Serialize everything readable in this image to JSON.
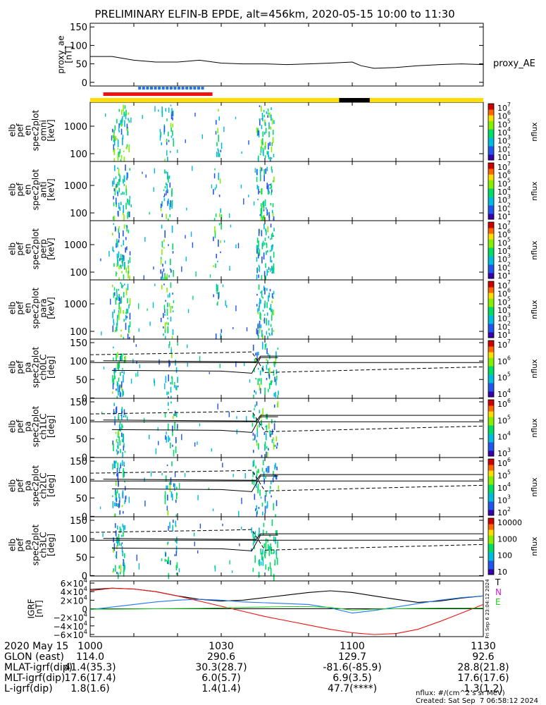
{
  "title": "PRELIMINARY ELFIN-B EPDE, alt=456km, 2020-05-15 10:00 to 11:30",
  "colors": {
    "red": "#ee1111",
    "blue": "#2277ee",
    "green": "#22cc22",
    "black": "#000000",
    "yellow": "#ffdd00"
  },
  "chart_data": [
    {
      "type": "line",
      "ylabel": "proxy_ae\n[nT]",
      "series_label": "proxy_AE",
      "yticks": [
        "150",
        "100",
        "50",
        "0"
      ],
      "ylim": [
        -10,
        160
      ],
      "x": [
        0,
        5,
        10,
        15,
        20,
        25,
        30,
        35,
        40,
        45,
        50,
        55,
        60,
        62,
        65,
        70,
        75,
        80,
        85,
        90
      ],
      "values": [
        70,
        70,
        60,
        55,
        55,
        60,
        52,
        50,
        50,
        48,
        50,
        52,
        55,
        45,
        38,
        40,
        45,
        48,
        50,
        48
      ]
    },
    {
      "type": "bar",
      "name": "state bars",
      "segments": [
        {
          "row": "blue",
          "color": "blue",
          "x0": 11,
          "x1": 26,
          "dashed": true
        },
        {
          "row": "red",
          "color": "red",
          "x0": 3,
          "x1": 28,
          "dashed": false
        },
        {
          "row": "yellow",
          "color": "yellow",
          "x0": 0,
          "x1": 90,
          "dashed": false
        },
        {
          "row": "yellow",
          "color": "black",
          "x0": 57,
          "x1": 64,
          "dashed": false
        }
      ]
    },
    {
      "type": "heatmap",
      "ylabel": "elb\npef\nen\nspec2plot\nomni\n[keV]",
      "yticks": [
        "1000",
        "100"
      ],
      "cb_ticks": [
        "10^7",
        "10^6",
        "10^5",
        "10^4",
        "10^3",
        "10^2",
        "10^1"
      ],
      "cb_label": "nflux"
    },
    {
      "type": "heatmap",
      "ylabel": "elb\npef\nen\nspec2plot\nanti\n[keV]",
      "yticks": [
        "1000",
        "100"
      ],
      "cb_ticks": [
        "10^7",
        "10^6",
        "10^5",
        "10^4",
        "10^3",
        "10^2",
        "10^1"
      ],
      "cb_label": "nflux"
    },
    {
      "type": "heatmap",
      "ylabel": "elb\npef\nen\nspec2plot\nperp\n[keV]",
      "yticks": [
        "1000",
        "100"
      ],
      "cb_ticks": [
        "10^7",
        "10^6",
        "10^5",
        "10^4",
        "10^3",
        "10^2",
        "10^1"
      ],
      "cb_label": "nflux"
    },
    {
      "type": "heatmap",
      "ylabel": "elb\npef\nen\nspec2plot\npara\n[keV]",
      "yticks": [
        "1000",
        "100"
      ],
      "cb_ticks": [
        "10^7",
        "10^6",
        "10^5",
        "10^4",
        "10^3",
        "10^2",
        "10^1"
      ],
      "cb_label": "nflux"
    },
    {
      "type": "heatmap",
      "ylabel": "elb\npef\npa\nspec2plot\nch0LC\n[deg]",
      "yticks": [
        "150",
        "100",
        "50",
        "0"
      ],
      "cb_ticks": [
        "10^7",
        "10^6",
        "10^5",
        "10^4"
      ],
      "cb_label": "nflux"
    },
    {
      "type": "heatmap",
      "ylabel": "elb\npef\npa\nspec2plot\nch1LC\n[deg]",
      "yticks": [
        "150",
        "100",
        "50",
        "0"
      ],
      "cb_ticks": [
        "10^6",
        "10^5",
        "10^4",
        "10^3"
      ],
      "cb_label": "nflux"
    },
    {
      "type": "heatmap",
      "ylabel": "elb\npef\npa\nspec2plot\nch2LC\n[deg]",
      "yticks": [
        "150",
        "100",
        "50",
        "0"
      ],
      "cb_ticks": [
        "10^6",
        "10^5",
        "10^4",
        "10^3",
        "10^2"
      ],
      "cb_label": "nflux"
    },
    {
      "type": "heatmap",
      "ylabel": "elb\npef\npa\nspec2plot\nch3LC\n[deg]",
      "yticks": [
        "150",
        "100",
        "50",
        "0"
      ],
      "cb_ticks": [
        "10000",
        "1000",
        "100",
        "10"
      ],
      "cb_label": "nflux"
    },
    {
      "type": "line",
      "ylabel": "IGRF\n[nT]",
      "yticks": [
        "6×10^4",
        "4×10^4",
        "2×10^4",
        "0",
        "−2×10^4",
        "−4×10^4",
        "−6×10^4"
      ],
      "ylim": [
        -65000,
        65000
      ],
      "legend": [
        "T",
        "N",
        "E"
      ],
      "x": [
        0,
        5,
        10,
        15,
        20,
        25,
        30,
        35,
        40,
        45,
        50,
        55,
        60,
        65,
        70,
        75,
        80,
        85,
        90
      ],
      "series": [
        {
          "name": "T",
          "color": "black",
          "values": [
            45000,
            48000,
            46000,
            40000,
            30000,
            22000,
            18000,
            20000,
            26000,
            32000,
            38000,
            42000,
            38000,
            30000,
            22000,
            15000,
            18000,
            25000,
            30000
          ]
        },
        {
          "name": "N",
          "color": "blue",
          "values": [
            -2000,
            4000,
            10000,
            16000,
            20000,
            22000,
            20000,
            16000,
            14000,
            12000,
            10000,
            2000,
            -10000,
            -4000,
            4000,
            12000,
            20000,
            26000,
            30000
          ]
        },
        {
          "name": "E",
          "color": "red",
          "values": [
            42000,
            48000,
            46000,
            40000,
            30000,
            18000,
            6000,
            -6000,
            -18000,
            -28000,
            -38000,
            -48000,
            -56000,
            -60000,
            -58000,
            -48000,
            -30000,
            -10000,
            10000
          ]
        },
        {
          "name": "green",
          "color": "green",
          "values": [
            -1000,
            -1000,
            -500,
            0,
            500,
            1000,
            2000,
            3000,
            4000,
            5000,
            5000,
            3000,
            -3000,
            -1000,
            0,
            1000,
            1500,
            1500,
            1500
          ]
        }
      ],
      "side_text": "Fri Sep  6 23:04:12 2024"
    }
  ],
  "xaxis": {
    "tick_labels": [
      "1000",
      "1030",
      "1100",
      "1130"
    ],
    "tick_values": [
      0,
      30,
      60,
      90
    ],
    "rows": [
      {
        "label": "2020 May 15",
        "values": [
          "",
          "",
          "",
          ""
        ]
      },
      {
        "label": "GLON (east)",
        "values": [
          "114.0",
          "290.6",
          "129.7",
          "92.6"
        ]
      },
      {
        "label": "MLAT-igrf(dip)",
        "values": [
          "41.4(35.3)",
          "30.3(28.7)",
          "-81.6(-85.9)",
          "28.8(21.8)"
        ]
      },
      {
        "label": "MLT-igrf(dip)",
        "values": [
          "17.6(17.4)",
          "6.0(5.7)",
          "6.9(3.5)",
          "17.6(17.6)"
        ]
      },
      {
        "label": "L-igrf(dip)",
        "values": [
          "1.8(1.6)",
          "1.4(1.4)",
          "47.7(****)",
          "1.3(1.2)"
        ]
      }
    ]
  },
  "footer": {
    "units": "nflux: #/(cm^2 s sr MeV)",
    "created": "Created: Sat Sep  7 06:58:12 2024"
  }
}
